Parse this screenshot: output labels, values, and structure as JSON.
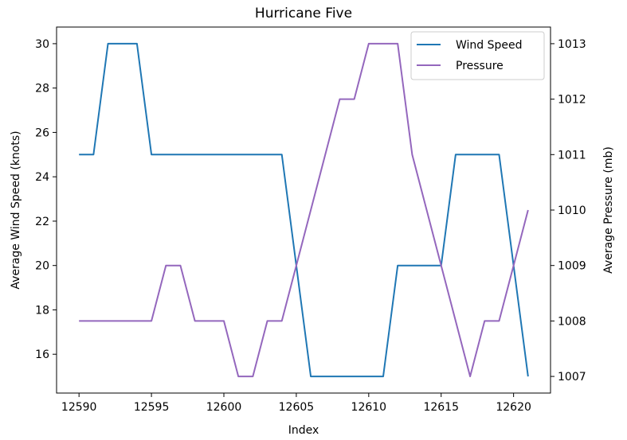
{
  "chart_data": {
    "type": "line",
    "title": "Hurricane Five",
    "xlabel": "Index",
    "ylabel_left": "Average Wind Speed (knots)",
    "ylabel_right": "Average Pressure (mb)",
    "x": [
      12590,
      12591,
      12592,
      12593,
      12594,
      12595,
      12596,
      12597,
      12598,
      12599,
      12600,
      12601,
      12602,
      12603,
      12604,
      12605,
      12606,
      12607,
      12608,
      12609,
      12610,
      12611,
      12612,
      12613,
      12614,
      12615,
      12616,
      12617,
      12618,
      12619,
      12620,
      12621
    ],
    "x_ticks": [
      12590,
      12595,
      12600,
      12605,
      12610,
      12615,
      12620
    ],
    "x_tick_labels": [
      "12590",
      "12595",
      "12600",
      "12605",
      "12610",
      "12615",
      "12620"
    ],
    "xlim": [
      12588.45,
      12622.55
    ],
    "y_left_ticks": [
      16,
      18,
      20,
      22,
      24,
      26,
      28,
      30
    ],
    "y_left_tick_labels": [
      "16",
      "18",
      "20",
      "22",
      "24",
      "26",
      "28",
      "30"
    ],
    "ylim_left": [
      14.25,
      30.75
    ],
    "y_right_ticks": [
      1007,
      1008,
      1009,
      1010,
      1011,
      1012,
      1013
    ],
    "y_right_tick_labels": [
      "1007",
      "1008",
      "1009",
      "1010",
      "1011",
      "1012",
      "1013"
    ],
    "ylim_right": [
      1006.7,
      1013.3
    ],
    "series": [
      {
        "name": "Wind Speed",
        "axis": "left",
        "color": "#1f77b4",
        "values": [
          25,
          25,
          30,
          30,
          30,
          25,
          25,
          25,
          25,
          25,
          25,
          25,
          25,
          25,
          25,
          20,
          15,
          15,
          15,
          15,
          15,
          15,
          20,
          20,
          20,
          20,
          25,
          25,
          25,
          25,
          20,
          15
        ]
      },
      {
        "name": "Pressure",
        "axis": "right",
        "color": "#9467bd",
        "values": [
          1008,
          1008,
          1008,
          1008,
          1008,
          1008,
          1009,
          1009,
          1008,
          1008,
          1008,
          1007,
          1007,
          1008,
          1008,
          1009,
          1010,
          1011,
          1012,
          1012,
          1013,
          1013,
          1013,
          1011,
          1010,
          1009,
          1008,
          1007,
          1008,
          1008,
          1009,
          1010
        ]
      }
    ],
    "legend": {
      "placement": "top-right",
      "entries": [
        "Wind Speed",
        "Pressure"
      ]
    },
    "grid": false
  }
}
